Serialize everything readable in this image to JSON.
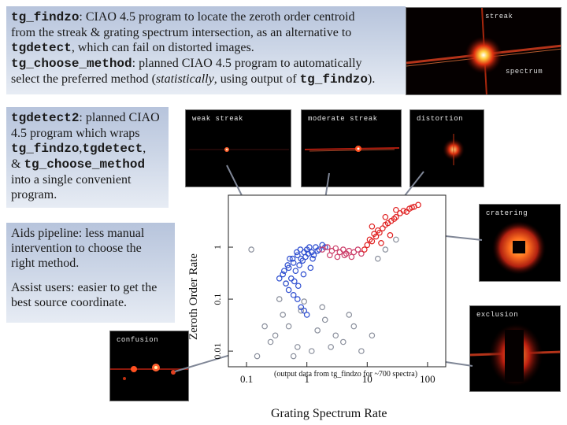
{
  "panel1": {
    "l1_code": "tg_findzo",
    "l1_text": ": CIAO 4.5 program to locate the zeroth order centroid",
    "l2": "from the streak & grating spectrum intersection, as an alternative to",
    "l3_code": "tgdetect",
    "l3_text": ", which can fail on distorted images.",
    "l4_code": "tg_choose_method",
    "l4_text": ": planned CIAO 4.5 program to automatically",
    "l5_text_a": "select the preferred method (",
    "l5_italic": "statistically",
    "l5_text_b": ", using output of ",
    "l5_code": "tg_findzo",
    "l5_text_c": ")."
  },
  "panel2": {
    "l1_code": "tgdetect2",
    "l1_text": ": planned CIAO",
    "l2": "4.5 program which wraps",
    "l3_code_a": "tg_findzo",
    "l3_sep": ",",
    "l3_code_b": "tgdetect",
    "l3_end": ",",
    "l4_amp": "& ",
    "l4_code": "tg_choose_method",
    "l5": "into a single convenient",
    "l6": "program."
  },
  "panel3": {
    "l1": "Aids pipeline: less manual",
    "l2": "intervention to choose the",
    "l3": "right method.",
    "l4": "Assist users:  easier to get the",
    "l5": "best source coordinate."
  },
  "thumbs": {
    "top_right": {
      "label_a": "streak",
      "label_b": "spectrum"
    },
    "weak": "weak streak",
    "moderate": "moderate streak",
    "distortion": "distortion",
    "cratering": "cratering",
    "exclusion": "exclusion",
    "confusion": "confusion"
  },
  "chart_data": {
    "type": "scatter",
    "title": "",
    "xlabel": "Grating Spectrum Rate",
    "ylabel": "Zeroth Order Rate",
    "xscale": "log",
    "yscale": "log",
    "xlim": [
      0.05,
      200
    ],
    "ylim": [
      0.005,
      10
    ],
    "xticks": [
      "0.1",
      "1",
      "10",
      "100"
    ],
    "yticks": [
      "0.01",
      "0.1",
      "1"
    ],
    "annotation": "(output data from tg_findzo for ~700 spectra)",
    "series": [
      {
        "color": "#8a8f9c",
        "points": [
          [
            0.15,
            0.008
          ],
          [
            0.3,
            0.02
          ],
          [
            0.5,
            0.03
          ],
          [
            0.7,
            0.012
          ],
          [
            1.2,
            0.01
          ],
          [
            2,
            0.04
          ],
          [
            3,
            0.02
          ],
          [
            4,
            0.015
          ],
          [
            6,
            0.03
          ],
          [
            0.4,
            0.05
          ],
          [
            0.8,
            0.06
          ],
          [
            1.5,
            0.025
          ],
          [
            2.5,
            0.012
          ],
          [
            0.25,
            0.015
          ],
          [
            0.6,
            0.008
          ],
          [
            5,
            0.05
          ],
          [
            0.9,
            0.09
          ],
          [
            1.8,
            0.07
          ],
          [
            0.35,
            0.1
          ],
          [
            12,
            0.02
          ],
          [
            8,
            0.01
          ],
          [
            0.2,
            0.03
          ],
          [
            20,
            0.9
          ],
          [
            30,
            1.4
          ],
          [
            0.45,
            0.2
          ],
          [
            15,
            0.6
          ],
          [
            0.12,
            0.9
          ]
        ]
      },
      {
        "color": "#2f4fd0",
        "points": [
          [
            0.4,
            0.3
          ],
          [
            0.5,
            0.4
          ],
          [
            0.6,
            0.5
          ],
          [
            0.7,
            0.7
          ],
          [
            0.8,
            0.6
          ],
          [
            0.9,
            0.8
          ],
          [
            1.0,
            0.9
          ],
          [
            1.1,
            1.0
          ],
          [
            1.2,
            0.8
          ],
          [
            1.4,
            1.0
          ],
          [
            1.6,
            0.9
          ],
          [
            0.55,
            0.25
          ],
          [
            0.65,
            0.35
          ],
          [
            0.75,
            0.45
          ],
          [
            0.85,
            0.55
          ],
          [
            0.95,
            0.65
          ],
          [
            1.3,
            0.7
          ],
          [
            1.5,
            0.85
          ],
          [
            0.45,
            0.2
          ],
          [
            0.5,
            0.15
          ],
          [
            0.6,
            0.12
          ],
          [
            0.7,
            0.1
          ],
          [
            0.8,
            0.07
          ],
          [
            0.9,
            0.06
          ],
          [
            1.0,
            0.05
          ],
          [
            0.35,
            0.25
          ],
          [
            0.42,
            0.35
          ],
          [
            0.58,
            0.6
          ],
          [
            0.68,
            0.8
          ],
          [
            0.78,
            0.9
          ],
          [
            1.05,
            0.75
          ],
          [
            1.25,
            0.6
          ],
          [
            1.8,
            1.1
          ],
          [
            2.0,
            1.0
          ],
          [
            0.48,
            0.45
          ],
          [
            0.62,
            0.22
          ],
          [
            0.72,
            0.18
          ],
          [
            0.88,
            0.3
          ],
          [
            1.15,
            0.4
          ],
          [
            0.52,
            0.6
          ]
        ]
      },
      {
        "color": "#cc3f6a",
        "points": [
          [
            1.8,
            0.9
          ],
          [
            2.2,
            1.0
          ],
          [
            2.6,
            0.85
          ],
          [
            3.0,
            0.95
          ],
          [
            3.5,
            0.8
          ],
          [
            4.0,
            0.9
          ],
          [
            4.5,
            0.75
          ],
          [
            5.0,
            0.85
          ],
          [
            6.0,
            0.8
          ],
          [
            7.0,
            0.9
          ],
          [
            2.4,
            0.7
          ],
          [
            3.2,
            0.65
          ],
          [
            4.2,
            0.7
          ],
          [
            5.5,
            0.65
          ],
          [
            8.0,
            0.75
          ]
        ]
      },
      {
        "color": "#e02020",
        "points": [
          [
            9,
            0.9
          ],
          [
            10,
            1.1
          ],
          [
            12,
            1.3
          ],
          [
            14,
            1.6
          ],
          [
            16,
            1.9
          ],
          [
            18,
            2.3
          ],
          [
            20,
            2.7
          ],
          [
            25,
            3.2
          ],
          [
            30,
            3.8
          ],
          [
            35,
            4.5
          ],
          [
            40,
            5.0
          ],
          [
            50,
            5.5
          ],
          [
            60,
            6.0
          ],
          [
            70,
            6.5
          ],
          [
            11,
            1.4
          ],
          [
            13,
            1.8
          ],
          [
            15,
            2.1
          ],
          [
            22,
            2.9
          ],
          [
            28,
            3.5
          ],
          [
            45,
            4.8
          ],
          [
            55,
            5.8
          ],
          [
            12,
            2.5
          ],
          [
            20,
            3.8
          ],
          [
            30,
            5.2
          ],
          [
            17,
            1.2
          ],
          [
            24,
            1.7
          ]
        ]
      }
    ]
  }
}
